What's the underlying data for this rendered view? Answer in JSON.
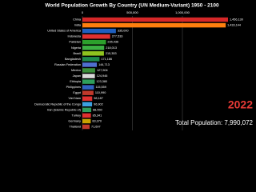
{
  "chart_data": {
    "type": "bar",
    "orientation": "horizontal",
    "title": "World Population Growth By Country (UN Medium-Variant) 1950 - 2100",
    "categories": [
      "China",
      "India",
      "United States of America",
      "Indonesia",
      "Pakistan",
      "Nigeria",
      "Brazil",
      "Bangladesh",
      "Russian Federation",
      "Mexico",
      "Japan",
      "Ethiopia",
      "Philippines",
      "Egypt",
      "Viet Nam",
      "Democratic Republic of the Congo",
      "Iran (Islamic Republic of)",
      "Turkey",
      "Germany",
      "Thailand"
    ],
    "values": [
      1456130,
      1433144,
      335000,
      277533,
      235436,
      218013,
      215353,
      171186,
      144713,
      127504,
      124946,
      123380,
      115559,
      110990,
      98187,
      96902,
      88550,
      85341,
      83370,
      71697
    ],
    "value_labels": [
      "1,456,130",
      "1,433,144",
      "335,000",
      "277,533",
      "235,436",
      "218,013",
      "215,353",
      "171,186",
      "144,713",
      "127,504",
      "124,946",
      "123,380",
      "115,559",
      "110,990",
      "98,187",
      "96,902",
      "88,550",
      "85,341",
      "83,370",
      "71,697"
    ],
    "colors": [
      "#d62728",
      "#ff7f0e",
      "#1f5fbf",
      "#e03030",
      "#2ca02c",
      "#3cb043",
      "#8fc31f",
      "#1e8a4c",
      "#4f6fd0",
      "#3a8f3a",
      "#d9d9d9",
      "#2e9e5b",
      "#3060c0",
      "#c0392b",
      "#e03030",
      "#3da0e0",
      "#2e9e5b",
      "#e03030",
      "#c9a100",
      "#c0392b"
    ],
    "xlim": [
      0,
      1600000
    ],
    "xticks": [
      0,
      {
        "value": 500000,
        "label": "500,000"
      },
      {
        "value": 1000000,
        "label": "1,000,000"
      }
    ],
    "grid": true,
    "year": "2022",
    "total": "Total Population: 7,990,072"
  }
}
